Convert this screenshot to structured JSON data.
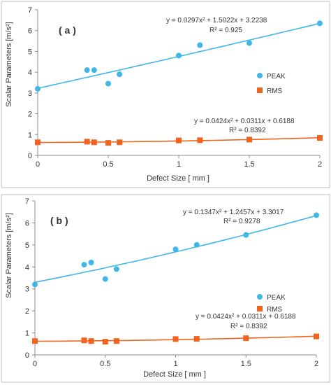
{
  "chart_data": [
    {
      "type": "scatter",
      "panel_label": "( a )",
      "xlabel": "Defect Size  [ mm ]",
      "ylabel": "Scalar Parameters [m/s²]",
      "xlim": [
        0,
        2
      ],
      "ylim": [
        0,
        7
      ],
      "x_ticks": [
        "0",
        "0.5",
        "1",
        "1.5",
        "2"
      ],
      "y_ticks": [
        "0",
        "1",
        "2",
        "3",
        "4",
        "5",
        "6",
        "7"
      ],
      "grid": false,
      "legend_position": "right",
      "series": [
        {
          "name": "PEAK",
          "color": "#3fb7e8",
          "marker": "circle",
          "x": [
            0,
            0.35,
            0.4,
            0.5,
            0.58,
            1,
            1.15,
            1.5,
            2
          ],
          "y": [
            3.2,
            4.1,
            4.1,
            3.45,
            3.9,
            4.8,
            5.3,
            5.4,
            6.35
          ],
          "trendline": {
            "type": "poly2",
            "coefficients": [
              0.0297,
              1.5022,
              3.2238
            ]
          },
          "equation": "y = 0.0297x² + 1.5022x + 3.2238",
          "r_squared": "R² = 0.925"
        },
        {
          "name": "RMS",
          "color": "#f0641e",
          "marker": "square",
          "x": [
            0,
            0.35,
            0.4,
            0.5,
            0.58,
            1,
            1.15,
            1.5,
            2
          ],
          "y": [
            0.63,
            0.66,
            0.63,
            0.6,
            0.63,
            0.72,
            0.73,
            0.76,
            0.84
          ],
          "trendline": {
            "type": "poly2",
            "coefficients": [
              0.0424,
              0.0311,
              0.6188
            ]
          },
          "equation": "y = 0.0424x² + 0.0311x + 0.6188",
          "r_squared": "R² = 0.8392"
        }
      ]
    },
    {
      "type": "scatter",
      "panel_label": "( b )",
      "xlabel": "Defect Size  [ mm ]",
      "ylabel": "Scalar Parameters [m/s²]",
      "xlim": [
        0,
        2
      ],
      "ylim": [
        0,
        7
      ],
      "x_ticks": [
        "0",
        "0.5",
        "1",
        "1.5",
        "2"
      ],
      "y_ticks": [
        "0",
        "1",
        "2",
        "3",
        "4",
        "5",
        "6",
        "7"
      ],
      "grid": false,
      "legend_position": "right",
      "series": [
        {
          "name": "PEAK",
          "color": "#3fb7e8",
          "marker": "circle",
          "x": [
            0,
            0.35,
            0.4,
            0.5,
            0.58,
            1,
            1.15,
            1.5,
            2
          ],
          "y": [
            3.2,
            4.1,
            4.2,
            3.45,
            3.9,
            4.8,
            5.0,
            5.45,
            6.35
          ],
          "trendline": {
            "type": "poly2",
            "coefficients": [
              0.1347,
              1.2457,
              3.3017
            ]
          },
          "equation": "y = 0.1347x² + 1.2457x + 3.3017",
          "r_squared": "R² = 0.9278"
        },
        {
          "name": "RMS",
          "color": "#f0641e",
          "marker": "square",
          "x": [
            0,
            0.35,
            0.4,
            0.5,
            0.58,
            1,
            1.15,
            1.5,
            2
          ],
          "y": [
            0.63,
            0.66,
            0.63,
            0.6,
            0.63,
            0.72,
            0.73,
            0.76,
            0.84
          ],
          "trendline": {
            "type": "poly2",
            "coefficients": [
              0.0424,
              0.0311,
              0.6188
            ]
          },
          "equation": "y = 0.0424x² + 0.0311x + 0.6188",
          "r_squared": "R² = 0.8392"
        }
      ]
    }
  ]
}
